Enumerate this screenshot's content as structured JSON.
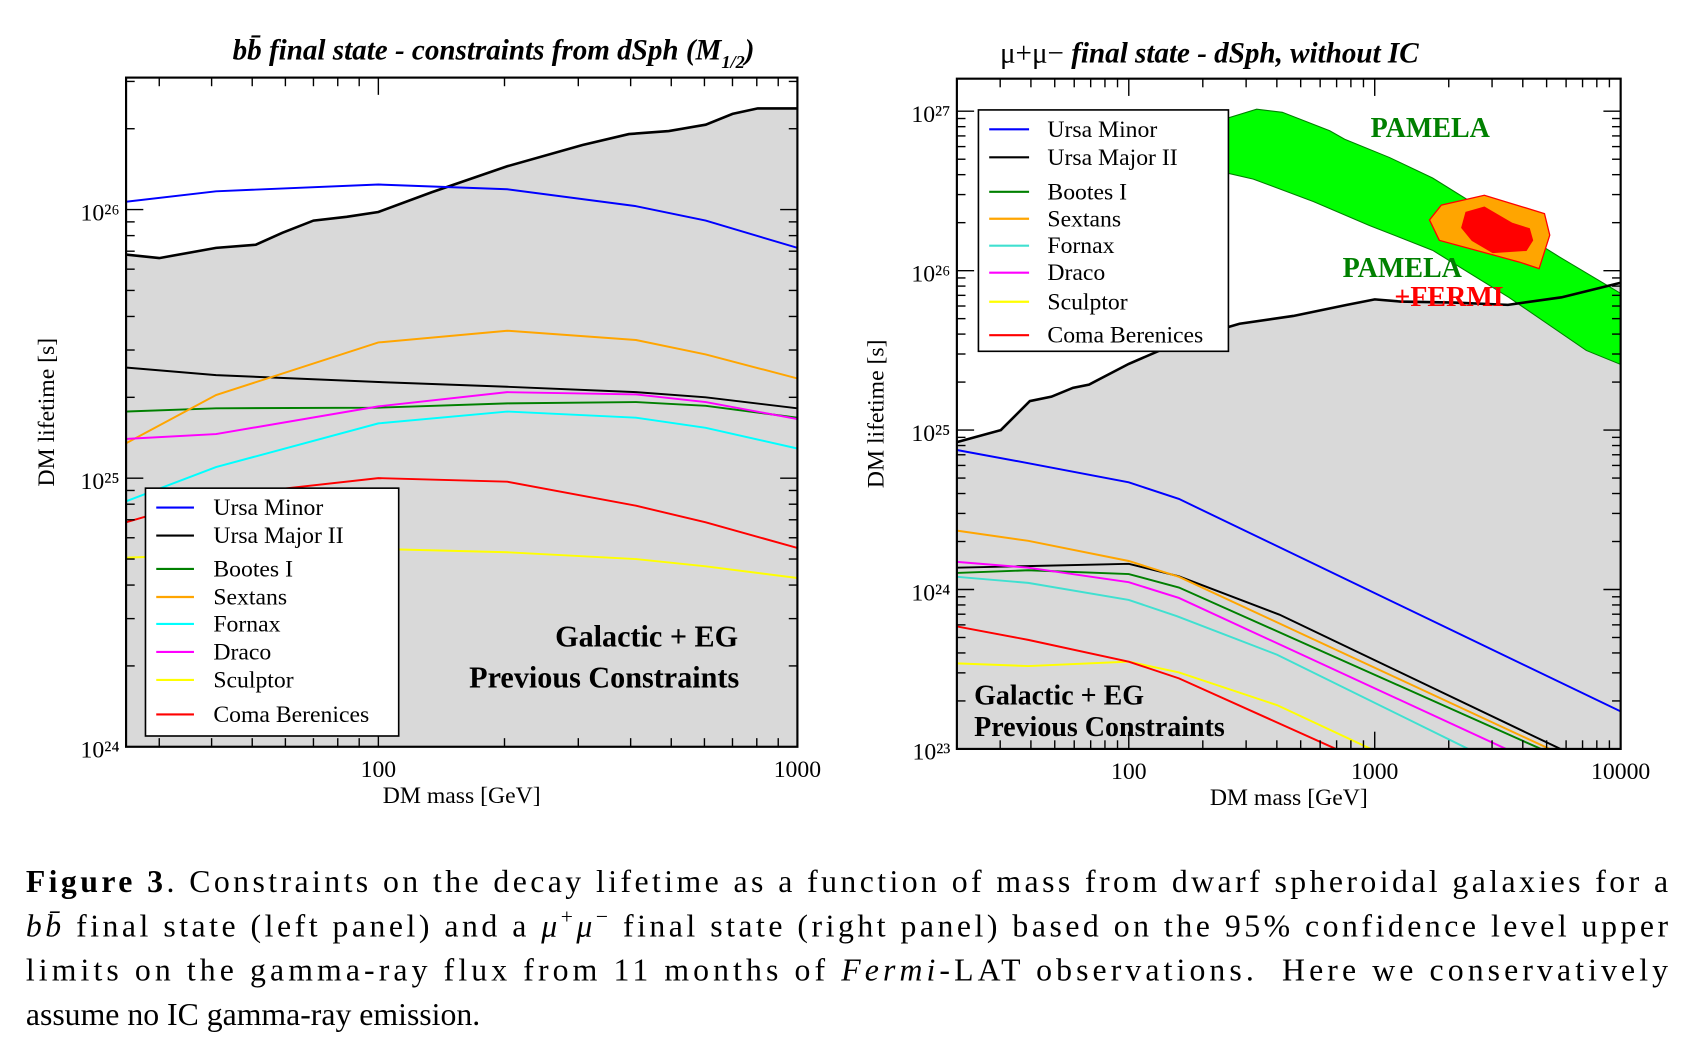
{
  "chart_data": [
    {
      "type": "line",
      "title_parts": [
        "bb̄ final state - constraints from dSph (M",
        "1/2",
        ")"
      ],
      "xlabel": "DM mass [GeV]",
      "ylabel": "DM lifetime [s]",
      "xscale": "log",
      "yscale": "log",
      "xlim": [
        25,
        1000
      ],
      "ylim": [
        1e+24,
        3.1e+26
      ],
      "grid": false,
      "legend": "bottom-left",
      "xticks": [
        {
          "value": 100,
          "label": "100"
        },
        {
          "value": 1000,
          "label": "1000"
        }
      ],
      "yticks": [
        {
          "value": 1e+24,
          "label": "10²⁴"
        },
        {
          "value": 1e+25,
          "label": "10²⁵"
        },
        {
          "value": 1e+26,
          "label": "10²⁶"
        }
      ],
      "excluded_region": {
        "label_lines": [
          "Galactic + EG",
          "Previous Constraints"
        ],
        "fill": "#d9d9d9",
        "line_color": "#000000",
        "x": [
          25,
          30,
          41,
          51,
          59,
          70,
          84,
          100,
          134,
          203,
          307,
          396,
          493,
          604,
          700,
          804,
          1000
        ],
        "y": [
          6.8e+25,
          6.6e+25,
          7.2e+25,
          7.4e+25,
          8.2e+25,
          9.1e+25,
          9.4e+25,
          9.8e+25,
          1.16e+26,
          1.45e+26,
          1.74e+26,
          1.91e+26,
          1.96e+26,
          2.07e+26,
          2.27e+26,
          2.38e+26,
          2.38e+26
        ]
      },
      "series": [
        {
          "name": "Ursa Minor",
          "color": "#0000ff",
          "x": [
            25,
            41,
            100,
            203,
            412,
            604,
            1000
          ],
          "y": [
            1.07e+26,
            1.17e+26,
            1.24e+26,
            1.19e+26,
            1.03e+26,
            9.1e+25,
            7.2e+25
          ]
        },
        {
          "name": "Ursa Major II",
          "color": "#000000",
          "x": [
            25,
            41,
            100,
            203,
            412,
            604,
            1000
          ],
          "y": [
            2.58e+25,
            2.42e+25,
            2.28e+25,
            2.19e+25,
            2.09e+25,
            2e+25,
            1.82e+25
          ]
        },
        {
          "name": "Bootes I",
          "color": "#008000",
          "x": [
            25,
            41,
            100,
            203,
            412,
            604,
            1000
          ],
          "y": [
            1.77e+25,
            1.82e+25,
            1.83e+25,
            1.9e+25,
            1.92e+25,
            1.86e+25,
            1.68e+25
          ]
        },
        {
          "name": "Sextans",
          "color": "#ffa500",
          "x": [
            25,
            41,
            100,
            203,
            412,
            604,
            1000
          ],
          "y": [
            1.35e+25,
            2.04e+25,
            3.2e+25,
            3.54e+25,
            3.27e+25,
            2.89e+25,
            2.35e+25
          ]
        },
        {
          "name": "Fornax",
          "color": "#00ffff",
          "x": [
            25,
            41,
            100,
            203,
            412,
            604,
            1000
          ],
          "y": [
            8.2e+24,
            1.1e+25,
            1.6e+25,
            1.77e+25,
            1.68e+25,
            1.54e+25,
            1.29e+25
          ]
        },
        {
          "name": "Draco",
          "color": "#ff00ff",
          "x": [
            25,
            41,
            100,
            203,
            412,
            604,
            1000
          ],
          "y": [
            1.4e+25,
            1.46e+25,
            1.85e+25,
            2.09e+25,
            2.05e+25,
            1.92e+25,
            1.66e+25
          ]
        },
        {
          "name": "Sculptor",
          "color": "#ffff00",
          "x": [
            25,
            100,
            203,
            412,
            604,
            1000
          ],
          "y": [
            5.06e+24,
            5.45e+24,
            5.3e+24,
            5e+24,
            4.7e+24,
            4.25e+24
          ]
        },
        {
          "name": "Coma Berenices",
          "color": "#ff0000",
          "x": [
            25,
            41,
            100,
            203,
            412,
            604,
            1000
          ],
          "y": [
            6.85e+24,
            8.57e+24,
            1e+25,
            9.7e+24,
            7.9e+24,
            6.85e+24,
            5.5e+24
          ]
        }
      ]
    },
    {
      "type": "line",
      "title_parts": [
        "μ+μ− ",
        " final state - dSph, without IC"
      ],
      "xlabel": "DM mass [GeV]",
      "ylabel": "DM lifetime [s]",
      "xscale": "log",
      "yscale": "log",
      "xlim": [
        20,
        10000
      ],
      "ylim": [
        1e+23,
        1.6e+27
      ],
      "grid": false,
      "legend": "top-left",
      "xticks": [
        {
          "value": 100,
          "label": "100"
        },
        {
          "value": 1000,
          "label": "1000"
        },
        {
          "value": 10000,
          "label": "10000"
        }
      ],
      "yticks": [
        {
          "value": 1e+23,
          "label": "10²³"
        },
        {
          "value": 1e+24,
          "label": "10²⁴"
        },
        {
          "value": 1e+25,
          "label": "10²⁵"
        },
        {
          "value": 1e+26,
          "label": "10²⁶"
        },
        {
          "value": 1e+27,
          "label": "10²⁷"
        }
      ],
      "excluded_region": {
        "label_lines": [
          "Galactic + EG",
          "Previous Constraints"
        ],
        "fill": "#d9d9d9",
        "line_color": "#000000",
        "x": [
          20,
          30.2,
          39.6,
          48.5,
          59.3,
          68.9,
          100,
          170,
          282,
          466,
          770,
          1000,
          1270,
          2100,
          3480,
          5750,
          10000
        ],
        "y": [
          8.4e+24,
          1e+25,
          1.52e+25,
          1.62e+25,
          1.84e+25,
          1.93e+25,
          2.6e+25,
          3.7e+25,
          4.65e+25,
          5.2e+25,
          6.1e+25,
          6.6e+25,
          6.4e+25,
          6.3e+25,
          6.1e+25,
          6.8e+25,
          8.4e+25
        ]
      },
      "regions": [
        {
          "label_lines": [
            "PAMELA"
          ],
          "label_color": "#008000",
          "fill": "#00ff00",
          "stroke": "#008000",
          "x": [
            247,
            331,
            421,
            656,
            755,
            1150,
            1720,
            5640,
            10000,
            10000,
            7250,
            3520,
            1720,
            951,
            564,
            321,
            247
          ],
          "y": [
            8.97e+26,
            1.03e+27,
            9.85e+26,
            7.55e+26,
            6.67e+26,
            5.12e+26,
            3.81e+26,
            1.22e+26,
            7.2e+25,
            2.58e+25,
            3.16e+25,
            6.78e+25,
            1.34e+26,
            1.92e+26,
            2.71e+26,
            3.75e+26,
            4.12e+26
          ]
        },
        {
          "label_lines": [
            "PAMELA",
            "+FERMI"
          ],
          "label_colors": [
            "#008000",
            "#ff0000"
          ],
          "contours": [
            {
              "fill": "#ffa500",
              "stroke": "#ff0000",
              "x": [
                1670,
                1866,
                2790,
                4900,
                5150,
                4660,
                3890,
                1830
              ],
              "y": [
                2.08e+26,
                2.58e+26,
                2.97e+26,
                2.28e+26,
                1.67e+26,
                1.03e+26,
                1.13e+26,
                1.55e+26
              ]
            },
            {
              "fill": "#ff0000",
              "stroke": "#ff0000",
              "x": [
                2260,
                2350,
                2790,
                3620,
                4250,
                4380,
                4130,
                3020,
                2490
              ],
              "y": [
                1.86e+26,
                2.32e+26,
                2.5e+26,
                1.98e+26,
                1.83e+26,
                1.55e+26,
                1.34e+26,
                1.3e+26,
                1.55e+26
              ]
            }
          ]
        }
      ],
      "series": [
        {
          "name": "Ursa Minor",
          "color": "#0000ff",
          "x": [
            20,
            39,
            100,
            160,
            10000
          ],
          "y": [
            7.5e+24,
            6.2e+24,
            4.7e+24,
            3.7e+24,
            1.72e+23
          ]
        },
        {
          "name": "Ursa Major II",
          "color": "#000000",
          "x": [
            20,
            100,
            160,
            410,
            5690
          ],
          "y": [
            1.37e+24,
            1.45e+24,
            1.21e+24,
            6.95e+23,
            1e+23
          ]
        },
        {
          "name": "Bootes I",
          "color": "#008000",
          "x": [
            20,
            39,
            100,
            160,
            4740
          ],
          "y": [
            1.27e+24,
            1.32e+24,
            1.25e+24,
            1.03e+24,
            1e+23
          ]
        },
        {
          "name": "Sextans",
          "color": "#ffa500",
          "x": [
            20,
            39,
            100,
            160,
            5140
          ],
          "y": [
            2.34e+24,
            2.02e+24,
            1.51e+24,
            1.2e+24,
            1e+23
          ]
        },
        {
          "name": "Fornax",
          "color": "#40e0d0",
          "x": [
            20,
            39,
            100,
            157,
            401,
            2400
          ],
          "y": [
            1.2e+24,
            1.1e+24,
            8.6e+23,
            6.8e+23,
            3.9e+23,
            1e+23
          ]
        },
        {
          "name": "Draco",
          "color": "#ff00ff",
          "x": [
            20,
            39,
            100,
            160,
            3420
          ],
          "y": [
            1.49e+24,
            1.37e+24,
            1.11e+24,
            8.85e+23,
            1e+23
          ]
        },
        {
          "name": "Sculptor",
          "color": "#ffff00",
          "x": [
            20,
            39,
            100,
            160,
            401,
            964
          ],
          "y": [
            3.44e+23,
            3.31e+23,
            3.53e+23,
            3.02e+23,
            1.88e+23,
            1e+23
          ]
        },
        {
          "name": "Coma Berenices",
          "color": "#ff0000",
          "x": [
            20,
            39,
            100,
            160,
            695
          ],
          "y": [
            5.87e+23,
            4.83e+23,
            3.53e+23,
            2.77e+23,
            1e+23
          ]
        }
      ]
    }
  ],
  "caption": {
    "lines": [
      [
        {
          "t": "Figure 3",
          "s": "bold"
        },
        {
          "t": ". Constraints on the decay lifetime as a function of mass from dwarf spheroidal galaxies for a"
        }
      ],
      [
        {
          "t": "bb̄",
          "s": "italic"
        },
        {
          "t": " final state (left panel) and a "
        },
        {
          "t": "μ",
          "s": "italic"
        },
        {
          "t": "+",
          "s": "sup"
        },
        {
          "t": "μ",
          "s": "italic"
        },
        {
          "t": "−",
          "s": "sup"
        },
        {
          "t": " final state (right panel) based on the 95% confidence level upper"
        }
      ],
      [
        {
          "t": "limits on the gamma-ray flux from 11 months of "
        },
        {
          "t": "Fermi",
          "s": "italic"
        },
        {
          "t": "-LAT observations.  Here we conservatively"
        }
      ],
      [
        {
          "t": "assume no IC gamma-ray emission."
        }
      ]
    ]
  }
}
